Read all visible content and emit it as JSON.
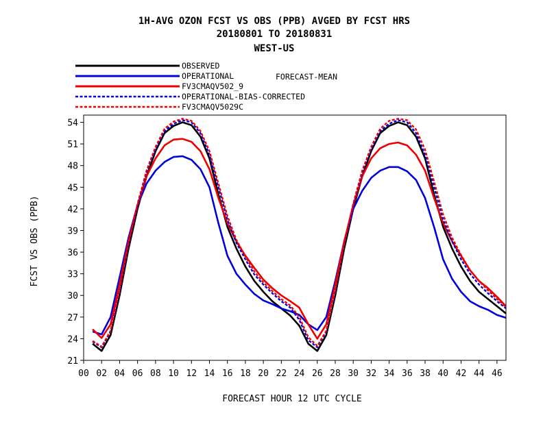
{
  "header": {
    "title_line1": "1H-AVG OZON FCST VS OBS (PPB)  AVGED BY FCST HRS",
    "title_line2": "20180801 TO 20180831",
    "title_line3": "WEST-US"
  },
  "legend_note": "FORECAST-MEAN",
  "chart_data": {
    "type": "line",
    "xlabel": "FORECAST HOUR  12 UTC CYCLE",
    "ylabel": "FCST VS OBS (PPB)",
    "xlim": [
      0,
      47
    ],
    "ylim": [
      21,
      55
    ],
    "x_ticks": [
      0,
      2,
      4,
      6,
      8,
      10,
      12,
      14,
      16,
      18,
      20,
      22,
      24,
      26,
      28,
      30,
      32,
      34,
      36,
      38,
      40,
      42,
      44,
      46
    ],
    "x_tick_labels": [
      "00",
      "02",
      "04",
      "06",
      "08",
      "10",
      "12",
      "14",
      "16",
      "18",
      "20",
      "22",
      "24",
      "26",
      "28",
      "30",
      "32",
      "34",
      "36",
      "38",
      "40",
      "42",
      "44",
      "46"
    ],
    "y_ticks": [
      21,
      24,
      27,
      30,
      33,
      36,
      39,
      42,
      45,
      48,
      51,
      54
    ],
    "y_tick_labels": [
      "21",
      "24",
      "27",
      "30",
      "33",
      "36",
      "39",
      "42",
      "45",
      "48",
      "51",
      "54"
    ],
    "legend_position": "top-left",
    "x": [
      1,
      2,
      3,
      4,
      5,
      6,
      7,
      8,
      9,
      10,
      11,
      12,
      13,
      14,
      15,
      16,
      17,
      18,
      19,
      20,
      21,
      22,
      23,
      24,
      25,
      26,
      27,
      28,
      29,
      30,
      31,
      32,
      33,
      34,
      35,
      36,
      37,
      38,
      39,
      40,
      41,
      42,
      43,
      44,
      45,
      46,
      47
    ],
    "series": [
      {
        "name": "OBSERVED",
        "color": "#000000",
        "dashed": false,
        "values": [
          23.3,
          22.3,
          24.5,
          30,
          36.5,
          42,
          46.5,
          50,
          52.5,
          53.5,
          54,
          53.6,
          52,
          49,
          44,
          39.5,
          36.5,
          34,
          32,
          30.5,
          29.2,
          28.2,
          27.2,
          25.8,
          23.3,
          22.3,
          24.5,
          30,
          36.5,
          42,
          46.5,
          50,
          52.5,
          53.5,
          54,
          53.6,
          52,
          49,
          44,
          39.5,
          36.5,
          34,
          32,
          30.5,
          29.5,
          28.5,
          27.5
        ]
      },
      {
        "name": "OPERATIONAL",
        "color": "#0000dd",
        "dashed": false,
        "values": [
          25,
          24.6,
          27,
          32.5,
          38,
          42.5,
          45.5,
          47.3,
          48.5,
          49.2,
          49.3,
          48.8,
          47.5,
          45,
          40,
          35.5,
          33,
          31.5,
          30.2,
          29.3,
          28.8,
          28.2,
          27.8,
          27.3,
          26,
          25.2,
          27,
          32,
          37.5,
          42,
          44.5,
          46.3,
          47.3,
          47.8,
          47.8,
          47.2,
          46,
          43.5,
          39.5,
          35,
          32.3,
          30.5,
          29.2,
          28.5,
          28,
          27.3,
          26.9
        ]
      },
      {
        "name": "FV3CMAQV502_9",
        "color": "#ee0000",
        "dashed": false,
        "values": [
          25.3,
          24.1,
          26,
          31.5,
          37.5,
          42.5,
          46.5,
          49,
          50.8,
          51.6,
          51.7,
          51.3,
          50,
          47.5,
          43.5,
          40,
          37.5,
          35.5,
          33.8,
          32.2,
          31,
          30,
          29.2,
          28.3,
          26,
          24,
          26,
          31.5,
          37.5,
          42.5,
          46.5,
          49,
          50.4,
          51,
          51.2,
          50.8,
          49.5,
          47.3,
          43.5,
          40,
          37.5,
          35.5,
          33.5,
          32,
          31,
          29.8,
          28.5
        ]
      },
      {
        "name": "OPERATIONAL-BIAS-CORRECTED",
        "color": "#0000dd",
        "dashed": true,
        "values": [
          23.6,
          22.8,
          25,
          30.5,
          37,
          42.5,
          47,
          50.3,
          52.8,
          53.8,
          54.3,
          54,
          52.5,
          49.5,
          45,
          40.5,
          37.3,
          35,
          32.9,
          31.5,
          30.3,
          29.2,
          28.3,
          26.6,
          23.8,
          22.8,
          25,
          30.5,
          37,
          42.5,
          47,
          50.3,
          52.8,
          53.8,
          54.3,
          54,
          52.5,
          49.5,
          45,
          40.5,
          37.5,
          35,
          33,
          31.5,
          30.3,
          29.2,
          28.2
        ]
      },
      {
        "name": "FV3CMAQV5029C",
        "color": "#ee0000",
        "dashed": true,
        "values": [
          23.7,
          22.9,
          25.1,
          30.7,
          37.2,
          42.7,
          47.3,
          50.6,
          53.1,
          54.1,
          54.5,
          54.2,
          52.8,
          50,
          45.5,
          41,
          37.7,
          35.4,
          33.3,
          31.8,
          30.6,
          29.5,
          28.6,
          27,
          24.2,
          23,
          25.1,
          30.7,
          37.2,
          42.7,
          47.3,
          50.6,
          53.1,
          54.2,
          54.5,
          54.3,
          53,
          50.2,
          45.8,
          41.2,
          38,
          35.6,
          33.5,
          32,
          30.7,
          29.5,
          28.4
        ]
      }
    ]
  }
}
